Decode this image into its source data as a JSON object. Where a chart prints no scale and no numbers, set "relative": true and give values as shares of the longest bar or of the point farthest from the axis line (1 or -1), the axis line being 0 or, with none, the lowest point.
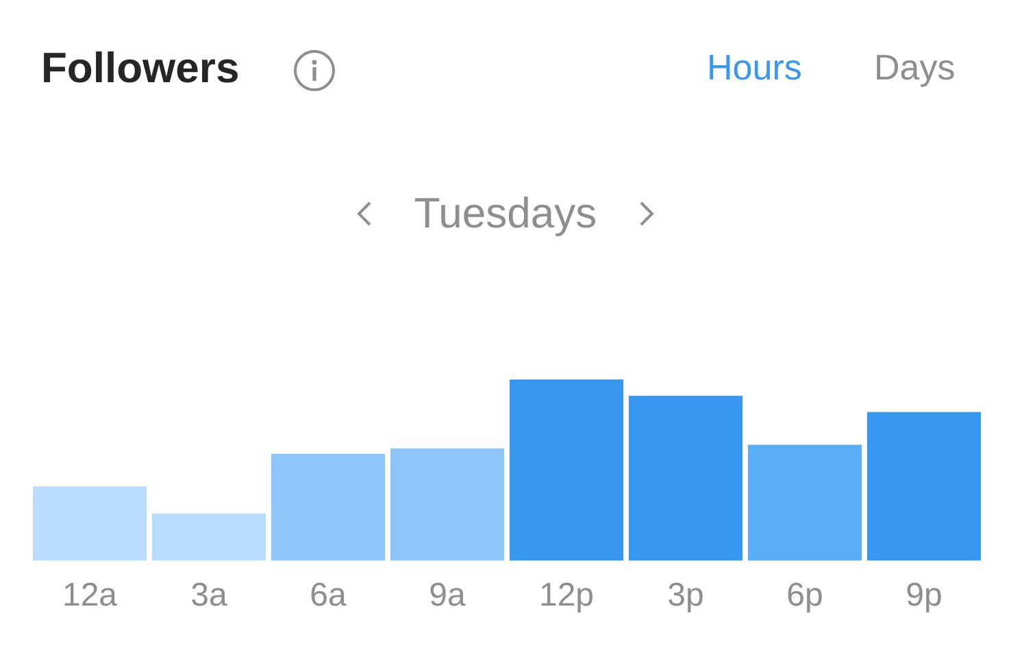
{
  "chart_data": {
    "type": "bar",
    "title": "Followers",
    "subtitle": "Tuesdays",
    "annotations": [
      "Hours",
      "Days"
    ],
    "categories": [
      "12a",
      "3a",
      "6a",
      "9a",
      "12p",
      "3p",
      "6p",
      "9p"
    ],
    "values": [
      0.41,
      0.26,
      0.59,
      0.62,
      1,
      0.91,
      0.64,
      0.82
    ],
    "colors": [
      "#b9dcfd",
      "#b9dcfd",
      "#8ec5fb",
      "#8ec5fb",
      "#3897f0",
      "#3897f0",
      "#5aaef7",
      "#3897f0"
    ],
    "relative": true,
    "grid": false,
    "legend": false
  }
}
